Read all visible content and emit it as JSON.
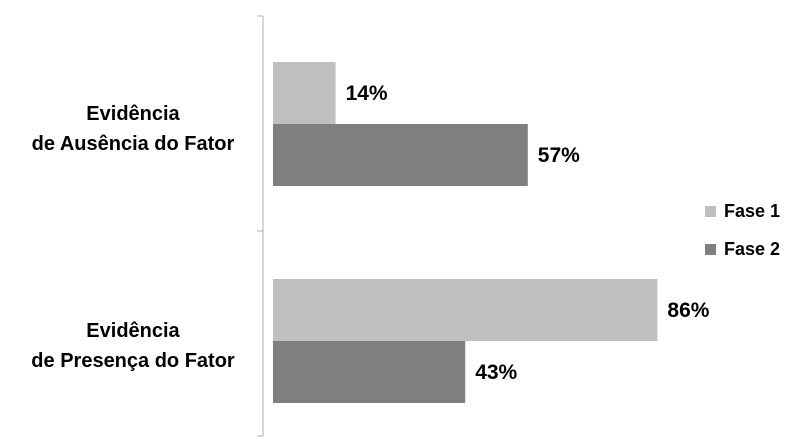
{
  "chart_data": {
    "type": "bar",
    "orientation": "horizontal",
    "categories": [
      [
        "Evidência",
        "de Ausência do Fator"
      ],
      [
        "Evidência",
        "de Presença do Fator"
      ]
    ],
    "series": [
      {
        "name": "Fase 1",
        "values": [
          14,
          86
        ],
        "labels": [
          "14%",
          "86%"
        ],
        "color": "#bfbfbf"
      },
      {
        "name": "Fase 2",
        "values": [
          57,
          43
        ],
        "labels": [
          "57%",
          "43%"
        ],
        "color": "#7f7f7f"
      }
    ],
    "xlim": [
      0,
      100
    ],
    "grid": false,
    "legend": "right"
  }
}
